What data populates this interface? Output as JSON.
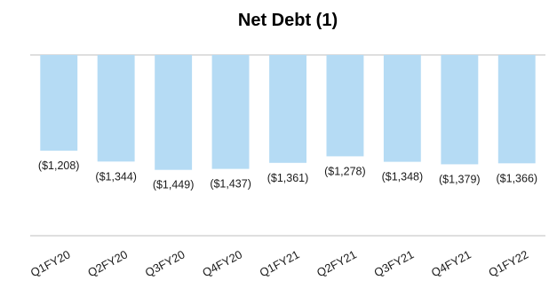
{
  "chart_data": {
    "type": "bar",
    "title": "Net Debt (1)",
    "categories": [
      "Q1FY20",
      "Q2FY20",
      "Q3FY20",
      "Q4FY20",
      "Q1FY21",
      "Q2FY21",
      "Q3FY21",
      "Q4FY21",
      "Q1FY22"
    ],
    "values": [
      -1208,
      -1344,
      -1449,
      -1437,
      -1361,
      -1278,
      -1348,
      -1379,
      -1366
    ],
    "data_labels": [
      "($1,208)",
      "($1,344)",
      "($1,449)",
      "($1,437)",
      "($1,361)",
      "($1,278)",
      "($1,348)",
      "($1,379)",
      "($1,366)"
    ],
    "xlabel": "",
    "ylabel": "",
    "grid": false,
    "legend": "none",
    "bar_color": "#b5dbf4",
    "axis_color": "#bfbfbf"
  }
}
